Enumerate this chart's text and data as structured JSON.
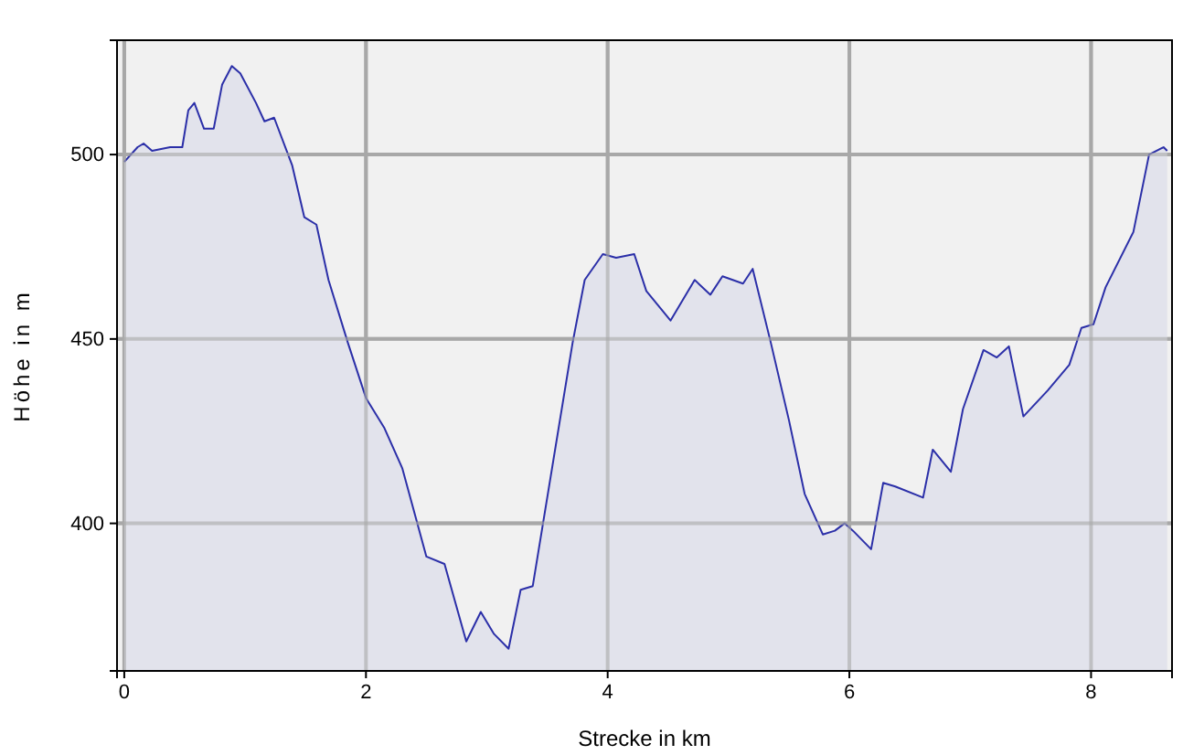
{
  "chart_data": {
    "type": "area",
    "xlabel": "Strecke in km",
    "ylabel": "Höhe in m",
    "xlim": [
      -0.06,
      8.67
    ],
    "ylim": [
      360,
      531
    ],
    "xticks": [
      0,
      2,
      4,
      6,
      8
    ],
    "yticks": [
      400,
      450,
      500
    ],
    "grid": true,
    "series": [
      {
        "color": "#2b2fa8",
        "x": [
          0,
          0.11,
          0.16,
          0.23,
          0.38,
          0.48,
          0.53,
          0.58,
          0.66,
          0.74,
          0.81,
          0.89,
          0.96,
          1.09,
          1.16,
          1.24,
          1.39,
          1.49,
          1.59,
          1.69,
          1.85,
          2.0,
          2.15,
          2.3,
          2.5,
          2.65,
          2.83,
          2.95,
          3.06,
          3.18,
          3.28,
          3.38,
          3.53,
          3.71,
          3.81,
          3.96,
          4.07,
          4.22,
          4.32,
          4.52,
          4.72,
          4.85,
          4.95,
          5.12,
          5.2,
          5.35,
          5.5,
          5.63,
          5.78,
          5.88,
          5.96,
          6.03,
          6.18,
          6.28,
          6.38,
          6.61,
          6.69,
          6.84,
          6.94,
          7.11,
          7.22,
          7.32,
          7.44,
          7.64,
          7.82,
          7.92,
          8.02,
          8.12,
          8.35,
          8.48,
          8.6,
          8.63
        ],
        "values": [
          498,
          502,
          503,
          501,
          502,
          502,
          512,
          514,
          507,
          507,
          519,
          524,
          522,
          514,
          509,
          510,
          497,
          483,
          481,
          466,
          449,
          434,
          426,
          415,
          391,
          389,
          368,
          376,
          370,
          366,
          382,
          383,
          413,
          449,
          466,
          473,
          472,
          473,
          463,
          455,
          466,
          462,
          467,
          465,
          469,
          449,
          428,
          408,
          397,
          398,
          400,
          398,
          393,
          411,
          410,
          407,
          420,
          414,
          431,
          447,
          445,
          448,
          429,
          436,
          443,
          453,
          454,
          464,
          479,
          500,
          502,
          501
        ]
      }
    ]
  }
}
